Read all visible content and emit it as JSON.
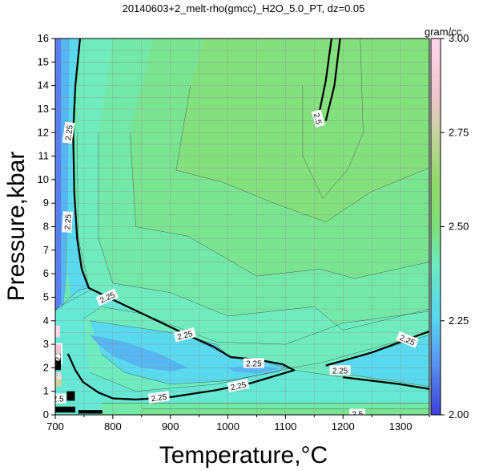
{
  "chart_data": {
    "type": "heatmap",
    "title": "20140603+2_melt-rho(gmcc)_H2O_5.0_PT, dz=0.05",
    "xlabel": "Temperature,°C",
    "ylabel": "Pressure,kbar",
    "xlim": [
      700,
      1350
    ],
    "ylim": [
      0,
      16
    ],
    "x_ticks": [
      "700",
      "800",
      "900",
      "1000",
      "1100",
      "1200",
      "1300"
    ],
    "y_ticks": [
      "0",
      "1",
      "2",
      "3",
      "4",
      "5",
      "6",
      "7",
      "8",
      "9",
      "10",
      "11",
      "12",
      "13",
      "14",
      "15",
      "16"
    ],
    "grid": true,
    "colorbar": {
      "unit": "gram/cc",
      "range": [
        2.0,
        3.0
      ],
      "ticks": [
        "2.00",
        "2.25",
        "2.50",
        "2.75",
        "3.00"
      ],
      "placement": "right"
    },
    "contour_interval": 0.05,
    "bold_contours": [
      2.25,
      2.5
    ],
    "contour_labels": [
      {
        "text": "2.25",
        "x": 723,
        "y": 12.0,
        "angle": 82
      },
      {
        "text": "2.25",
        "x": 721,
        "y": 8.2,
        "angle": 86
      },
      {
        "text": "2.25",
        "x": 790,
        "y": 5.0,
        "angle": 25
      },
      {
        "text": "2.25",
        "x": 925,
        "y": 3.4,
        "angle": 15
      },
      {
        "text": "2.25",
        "x": 1045,
        "y": 2.2,
        "angle": 0
      },
      {
        "text": "2.25",
        "x": 1195,
        "y": 1.9,
        "angle": 0
      },
      {
        "text": "2.25",
        "x": 1312,
        "y": 3.2,
        "angle": -22
      },
      {
        "text": "2.25",
        "x": 880,
        "y": 0.75,
        "angle": 8
      },
      {
        "text": "2.25",
        "x": 1018,
        "y": 1.25,
        "angle": 12
      },
      {
        "text": "2.25",
        "x": 704,
        "y": 2.6,
        "angle": 90
      },
      {
        "text": "2.5",
        "x": 1157,
        "y": 12.6,
        "angle": -75
      },
      {
        "text": "2.5",
        "x": 1225,
        "y": 0.05,
        "angle": 0
      },
      {
        "text": "2.5",
        "x": 705,
        "y": 0.7,
        "angle": 0
      }
    ],
    "contours_2_25": [
      [
        [
          743,
          16
        ],
        [
          735,
          14
        ],
        [
          731,
          12
        ],
        [
          733,
          9.5
        ],
        [
          738,
          7.5
        ],
        [
          746,
          6.2
        ],
        [
          758,
          5.4
        ],
        [
          800,
          4.9
        ],
        [
          860,
          4.2
        ],
        [
          920,
          3.5
        ],
        [
          975,
          2.9
        ],
        [
          1005,
          2.45
        ],
        [
          1050,
          2.35
        ],
        [
          1095,
          2.15
        ],
        [
          1115,
          1.9
        ],
        [
          1095,
          1.75
        ],
        [
          1040,
          1.35
        ],
        [
          980,
          1.05
        ],
        [
          900,
          0.75
        ],
        [
          840,
          0.65
        ],
        [
          800,
          0.7
        ],
        [
          775,
          0.95
        ],
        [
          748,
          1.4
        ],
        [
          735,
          1.9
        ],
        [
          722,
          2.6
        ]
      ],
      [
        [
          1170,
          2.1
        ],
        [
          1200,
          2.3
        ],
        [
          1250,
          2.65
        ],
        [
          1300,
          3.1
        ],
        [
          1350,
          3.55
        ]
      ],
      [
        [
          1200,
          1.6
        ],
        [
          1250,
          1.45
        ],
        [
          1300,
          1.3
        ],
        [
          1350,
          1.1
        ]
      ]
    ],
    "contours_2_5": [
      [
        [
          1180,
          16
        ],
        [
          1170,
          14.2
        ],
        [
          1160,
          13
        ],
        [
          1157,
          12.5
        ]
      ],
      [
        [
          1195,
          16
        ],
        [
          1185,
          14
        ],
        [
          1170,
          12.5
        ]
      ]
    ],
    "regions": [
      {
        "value": 2.1,
        "path": [
          [
            700,
            16
          ],
          [
            710,
            16
          ],
          [
            712,
            12
          ],
          [
            712,
            8
          ],
          [
            712,
            6
          ],
          [
            710,
            4.7
          ],
          [
            700,
            4.4
          ]
        ]
      },
      {
        "value": 2.15,
        "path": [
          [
            710,
            16
          ],
          [
            725,
            16
          ],
          [
            723,
            12
          ],
          [
            722,
            8
          ],
          [
            720,
            6
          ],
          [
            715,
            4.8
          ],
          [
            710,
            4.5
          ],
          [
            710,
            16
          ]
        ]
      },
      {
        "value": 2.2,
        "path": [
          [
            725,
            16
          ],
          [
            743,
            16
          ],
          [
            735,
            14
          ],
          [
            731,
            12
          ],
          [
            733,
            9.5
          ],
          [
            738,
            7.5
          ],
          [
            746,
            6.2
          ],
          [
            758,
            5.4
          ],
          [
            740,
            5.2
          ],
          [
            728,
            5.0
          ],
          [
            722,
            6
          ],
          [
            723,
            12
          ]
        ]
      },
      {
        "value": 2.18,
        "path": [
          [
            760,
            3.4
          ],
          [
            820,
            3.1
          ],
          [
            880,
            2.6
          ],
          [
            930,
            2.0
          ],
          [
            900,
            1.85
          ],
          [
            850,
            2.0
          ],
          [
            800,
            2.5
          ],
          [
            775,
            3.0
          ]
        ]
      },
      {
        "value": 2.15,
        "path": [
          [
            1000,
            2.0
          ],
          [
            1050,
            2.1
          ],
          [
            1090,
            1.95
          ],
          [
            1050,
            1.75
          ],
          [
            1010,
            1.85
          ]
        ]
      }
    ],
    "texture": "light-gray thin contour lines every 0.05 g/cc on green-cyan palette"
  }
}
